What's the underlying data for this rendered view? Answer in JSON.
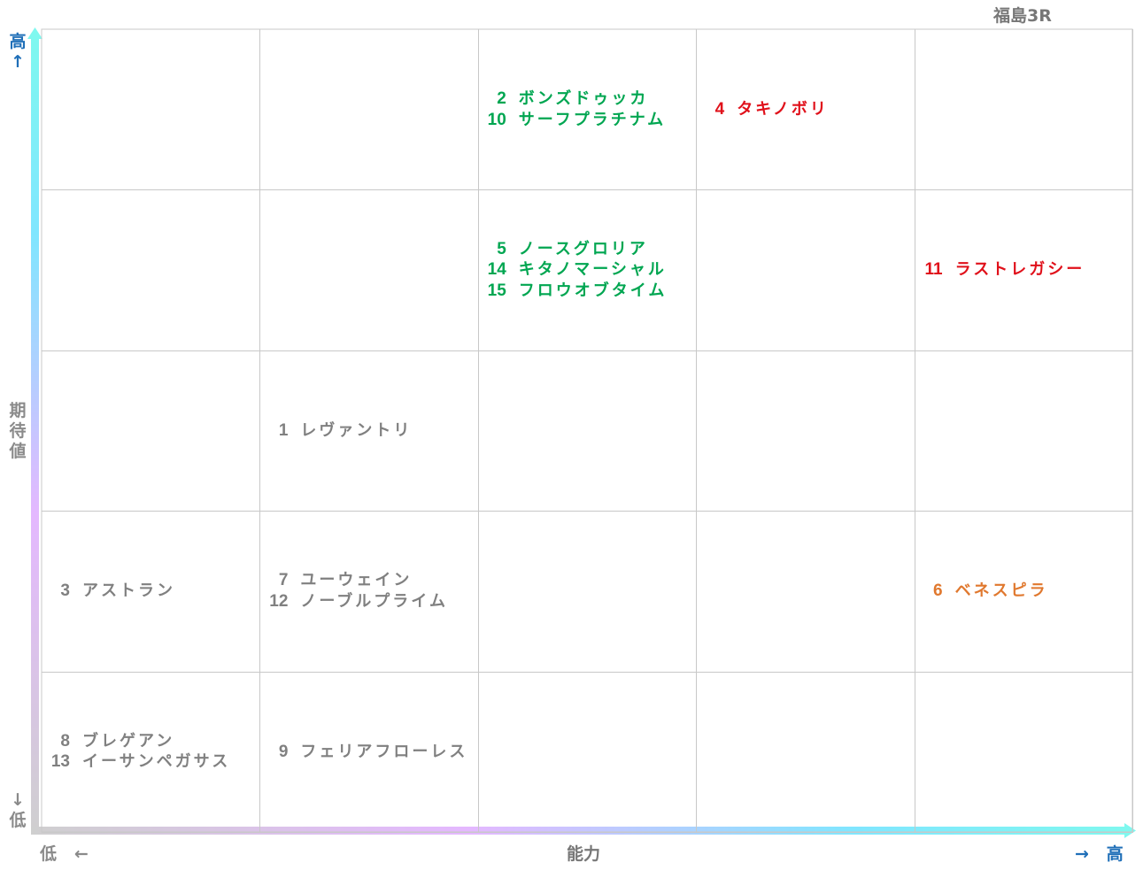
{
  "title": "福島3R",
  "y_axis": {
    "high": "高",
    "high_arrow": "↑",
    "label": "期待値",
    "low_arrow": "↓",
    "low": "低"
  },
  "x_axis": {
    "low": "低",
    "low_arrow": "←",
    "label": "能力",
    "high_arrow": "→",
    "high": "高"
  },
  "grid": {
    "rows": [
      [
        {
          "horses": []
        },
        {
          "horses": []
        },
        {
          "color": "#00a651",
          "horses": [
            {
              "number": "2",
              "name": "ボンズドゥッカ"
            },
            {
              "number": "10",
              "name": "サーフプラチナム"
            }
          ]
        },
        {
          "color": "#e0101a",
          "horses": [
            {
              "number": "4",
              "name": "タキノボリ"
            }
          ]
        },
        {
          "horses": []
        }
      ],
      [
        {
          "horses": []
        },
        {
          "horses": []
        },
        {
          "color": "#00a651",
          "horses": [
            {
              "number": "5",
              "name": "ノースグロリア"
            },
            {
              "number": "14",
              "name": "キタノマーシャル"
            },
            {
              "number": "15",
              "name": "フロウオブタイム"
            }
          ]
        },
        {
          "horses": []
        },
        {
          "color": "#e0101a",
          "horses": [
            {
              "number": "11",
              "name": "ラストレガシー"
            }
          ]
        }
      ],
      [
        {
          "horses": []
        },
        {
          "color": "#808080",
          "horses": [
            {
              "number": "1",
              "name": "レヴァントリ"
            }
          ]
        },
        {
          "horses": []
        },
        {
          "horses": []
        },
        {
          "horses": []
        }
      ],
      [
        {
          "color": "#808080",
          "horses": [
            {
              "number": "3",
              "name": "アストラン"
            }
          ]
        },
        {
          "color": "#808080",
          "horses": [
            {
              "number": "7",
              "name": "ユーウェイン"
            },
            {
              "number": "12",
              "name": "ノーブルプライム"
            }
          ]
        },
        {
          "horses": []
        },
        {
          "horses": []
        },
        {
          "color": "#e0782e",
          "horses": [
            {
              "number": "6",
              "name": "ベネスピラ"
            }
          ]
        }
      ],
      [
        {
          "color": "#808080",
          "horses": [
            {
              "number": "8",
              "name": "ブレゲアン"
            },
            {
              "number": "13",
              "name": "イーサンペガサス"
            }
          ]
        },
        {
          "color": "#808080",
          "horses": [
            {
              "number": "9",
              "name": "フェリアフローレス"
            }
          ]
        },
        {
          "horses": []
        },
        {
          "horses": []
        },
        {
          "horses": []
        }
      ]
    ]
  }
}
